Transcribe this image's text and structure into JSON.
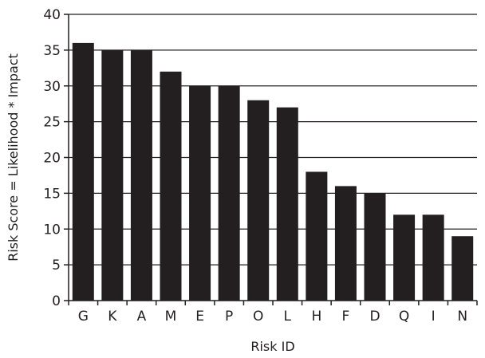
{
  "chart_data": {
    "type": "bar",
    "xlabel": "Risk ID",
    "ylabel": "Risk Score = Likelihood * Impact",
    "ylim": [
      0,
      40
    ],
    "yticks": [
      0,
      5,
      10,
      15,
      20,
      25,
      30,
      35,
      40
    ],
    "grid": "horizontal",
    "categories": [
      "G",
      "K",
      "A",
      "M",
      "E",
      "P",
      "O",
      "L",
      "H",
      "F",
      "D",
      "Q",
      "I",
      "N"
    ],
    "values": [
      36,
      35,
      35,
      32,
      30,
      30,
      28,
      27,
      18,
      16,
      15,
      12,
      12,
      9
    ],
    "colors": {
      "bar": "#231f20",
      "grid": "#231f20",
      "axis": "#231f20"
    }
  }
}
